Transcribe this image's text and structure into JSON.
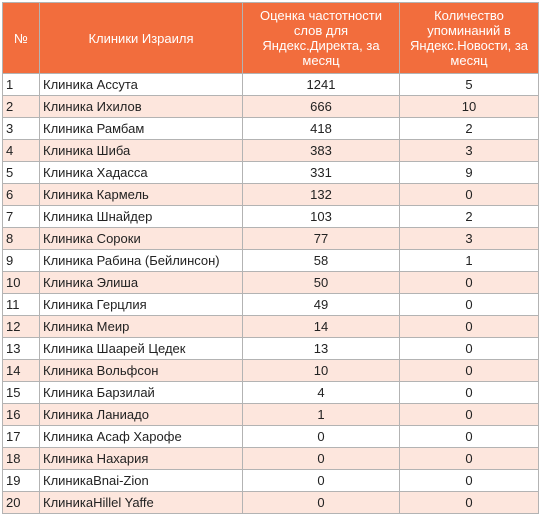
{
  "header": {
    "num": "№",
    "clinic": "Клиники Израиля",
    "freq": "Оценка частотности слов для Яндекс.Директа, за месяц",
    "news": "Количество упоминаний в Яндекс.Новости, за месяц"
  },
  "rows": [
    {
      "num": "1",
      "name": "Клиника Ассута",
      "freq": "1241",
      "news": "5"
    },
    {
      "num": "2",
      "name": "Клиника Ихилов",
      "freq": "666",
      "news": "10"
    },
    {
      "num": "3",
      "name": "Клиника Рамбам",
      "freq": "418",
      "news": "2"
    },
    {
      "num": "4",
      "name": "Клиника Шиба",
      "freq": "383",
      "news": "3"
    },
    {
      "num": "5",
      "name": "Клиника Хадасса",
      "freq": "331",
      "news": "9"
    },
    {
      "num": "6",
      "name": "Клиника Кармель",
      "freq": "132",
      "news": "0"
    },
    {
      "num": "7",
      "name": "Клиника Шнайдер",
      "freq": "103",
      "news": "2"
    },
    {
      "num": "8",
      "name": "Клиника Сороки",
      "freq": "77",
      "news": "3"
    },
    {
      "num": "9",
      "name": "Клиника Рабина (Бейлинсон)",
      "freq": "58",
      "news": "1"
    },
    {
      "num": "10",
      "name": "Клиника Элиша",
      "freq": "50",
      "news": "0"
    },
    {
      "num": "11",
      "name": "Клиника Герцлия",
      "freq": "49",
      "news": "0"
    },
    {
      "num": "12",
      "name": "Клиника Меир",
      "freq": "14",
      "news": "0"
    },
    {
      "num": "13",
      "name": "Клиника Шаарей Цедек",
      "freq": "13",
      "news": "0"
    },
    {
      "num": "14",
      "name": "Клиника Вольфсон",
      "freq": "10",
      "news": "0"
    },
    {
      "num": "15",
      "name": "Клиника Барзилай",
      "freq": "4",
      "news": "0"
    },
    {
      "num": "16",
      "name": "Клиника Ланиадо",
      "freq": "1",
      "news": "0"
    },
    {
      "num": "17",
      "name": "Клиника Асаф Харофе",
      "freq": "0",
      "news": "0"
    },
    {
      "num": "18",
      "name": "Клиника Нахария",
      "freq": "0",
      "news": "0"
    },
    {
      "num": "19",
      "name": "КлиникаBnai-Zion",
      "freq": "0",
      "news": "0"
    },
    {
      "num": "20",
      "name": "КлиникаHillel Yaffe",
      "freq": "0",
      "news": "0"
    }
  ],
  "colors": {
    "header_bg": "#f26d3d",
    "header_text": "#ffffff",
    "row_alt_bg": "#fde6dd",
    "border": "#b3b3b3"
  }
}
